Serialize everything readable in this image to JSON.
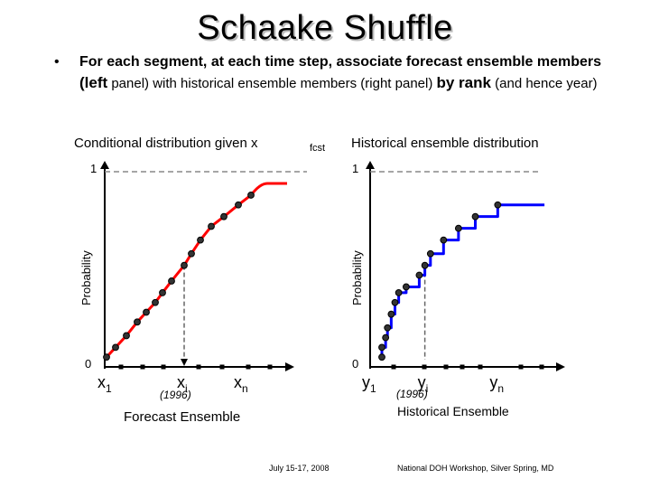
{
  "title": "Schaake Shuffle",
  "bullet": {
    "symbol": "•",
    "line1": "For each segment, at each time step, associate forecast ensemble members",
    "line2": {
      "p1": "(left",
      "p2": " panel) with historical ensemble members (right panel) ",
      "p3": "by rank",
      "p4": " (and hence year)"
    }
  },
  "chart_data": [
    {
      "type": "line",
      "title": "Conditional distribution given x",
      "title_subscript": "fcst",
      "ylabel": "Probability",
      "xlabel": "Forecast Ensemble",
      "ylim": [
        0,
        1
      ],
      "y_ticks": [
        "0",
        "1"
      ],
      "x_markers": [
        {
          "label": "x",
          "sub": "1",
          "x": 0.0
        },
        {
          "label": "x",
          "sub": "i",
          "x": 0.43,
          "note": "(1996)"
        },
        {
          "label": "x",
          "sub": "n",
          "x": 0.73
        }
      ],
      "curve_extent_x": [
        0.0,
        1.0
      ],
      "points": [
        {
          "x": 0.0,
          "y": 0.05
        },
        {
          "x": 0.05,
          "y": 0.1
        },
        {
          "x": 0.11,
          "y": 0.16
        },
        {
          "x": 0.17,
          "y": 0.23
        },
        {
          "x": 0.22,
          "y": 0.28
        },
        {
          "x": 0.27,
          "y": 0.33
        },
        {
          "x": 0.31,
          "y": 0.38
        },
        {
          "x": 0.36,
          "y": 0.44
        },
        {
          "x": 0.43,
          "y": 0.52
        },
        {
          "x": 0.47,
          "y": 0.58
        },
        {
          "x": 0.52,
          "y": 0.65
        },
        {
          "x": 0.58,
          "y": 0.72
        },
        {
          "x": 0.65,
          "y": 0.77
        },
        {
          "x": 0.73,
          "y": 0.83
        },
        {
          "x": 0.8,
          "y": 0.88
        }
      ],
      "line_color": "#ff0000",
      "dashed_guide_y": 1.0,
      "dashed_guide_x": 0.43,
      "dashed_guide_to_y": 0.52
    },
    {
      "type": "line",
      "title": "Historical ensemble distribution",
      "ylabel": "Probability",
      "xlabel": "Historical Ensemble",
      "ylim": [
        0,
        1
      ],
      "y_ticks": [
        "0",
        "1"
      ],
      "x_markers": [
        {
          "label": "y",
          "sub": "1",
          "x": 0.0
        },
        {
          "label": "y",
          "sub": "i",
          "x": 0.23,
          "note": "(1996)"
        },
        {
          "label": "y",
          "sub": "n",
          "x": 0.62
        }
      ],
      "points": [
        {
          "x": 0.0,
          "y": 0.05
        },
        {
          "x": 0.0,
          "y": 0.1
        },
        {
          "x": 0.02,
          "y": 0.15
        },
        {
          "x": 0.03,
          "y": 0.2
        },
        {
          "x": 0.05,
          "y": 0.27
        },
        {
          "x": 0.07,
          "y": 0.33
        },
        {
          "x": 0.09,
          "y": 0.38
        },
        {
          "x": 0.13,
          "y": 0.41
        },
        {
          "x": 0.2,
          "y": 0.47
        },
        {
          "x": 0.23,
          "y": 0.52
        },
        {
          "x": 0.26,
          "y": 0.58
        },
        {
          "x": 0.33,
          "y": 0.65
        },
        {
          "x": 0.41,
          "y": 0.71
        },
        {
          "x": 0.5,
          "y": 0.77
        },
        {
          "x": 0.62,
          "y": 0.83
        }
      ],
      "step_end_x": 0.87,
      "line_color": "#0000ff",
      "dashed_guide_y": 1.0,
      "dashed_guide_x": 0.23,
      "dashed_guide_to_y": 0.52
    }
  ],
  "footer": {
    "left": "July 15-17, 2008",
    "right": "National DOH Workshop, Silver Spring, MD"
  }
}
